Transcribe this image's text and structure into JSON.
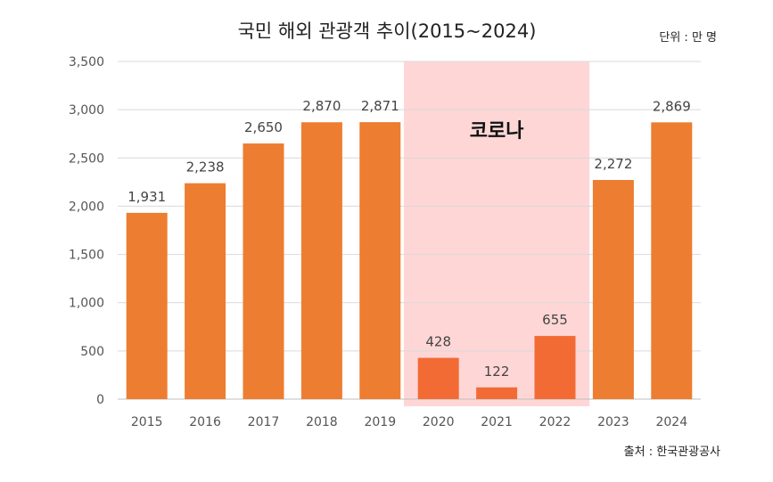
{
  "chart_data": {
    "type": "bar",
    "title": "국민 해외 관광객 추이(2015~2024)",
    "unit_label": "단위 : 만 명",
    "source_label": "출처 : 한국관광공사",
    "categories": [
      "2015",
      "2016",
      "2017",
      "2018",
      "2019",
      "2020",
      "2021",
      "2022",
      "2023",
      "2024"
    ],
    "values": [
      1931,
      2238,
      2650,
      2870,
      2871,
      428,
      122,
      655,
      2272,
      2869
    ],
    "data_labels": [
      "1,931",
      "2,238",
      "2,650",
      "2,870",
      "2,871",
      "428",
      "122",
      "655",
      "2,272",
      "2,869"
    ],
    "ylim": [
      0,
      3500
    ],
    "yticks": [
      0,
      500,
      1000,
      1500,
      2000,
      2500,
      3000,
      3500
    ],
    "ytick_labels": [
      "0",
      "500",
      "1,000",
      "1,500",
      "2,000",
      "2,500",
      "3,000",
      "3,500"
    ],
    "grid": true,
    "highlight": {
      "label": "코로나",
      "categories": [
        "2020",
        "2021",
        "2022"
      ]
    },
    "colors": {
      "bar": "#ED7D31",
      "bar_highlight": "#F26B35",
      "highlight_band": "#FFD6D6"
    }
  }
}
